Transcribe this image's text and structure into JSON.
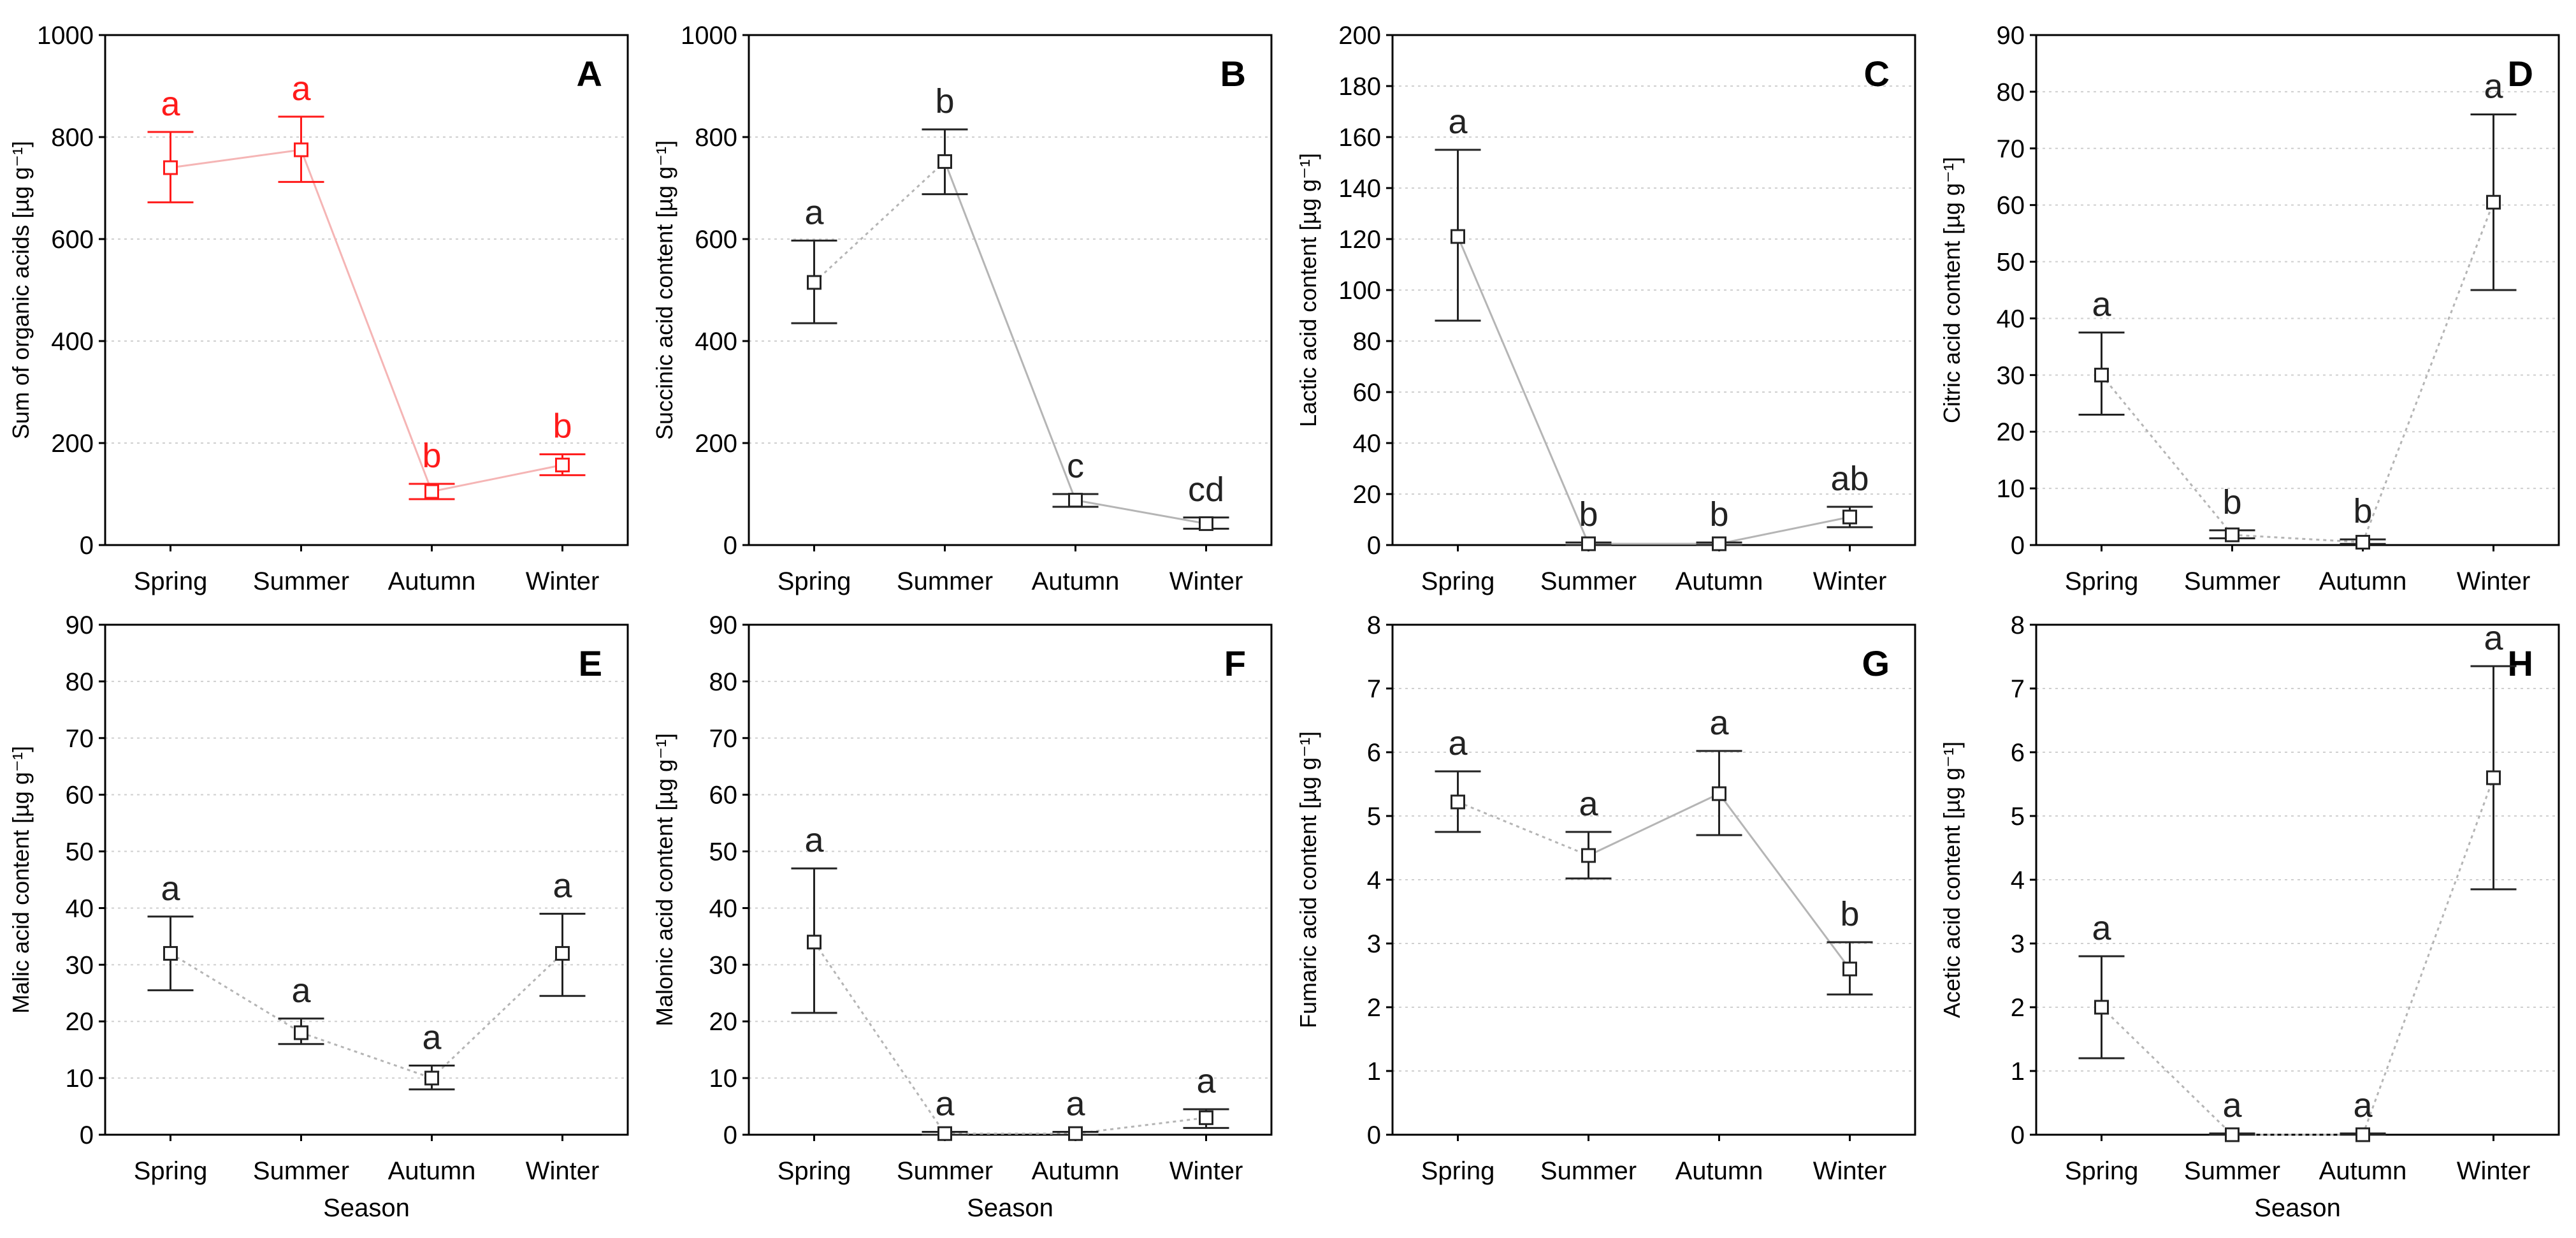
{
  "chart_data": [
    {
      "panel": "A",
      "type": "line",
      "categories": [
        "Spring",
        "Summer",
        "Autumn",
        "Winter"
      ],
      "ylabel": "Sum of organic acids [µg g⁻¹]",
      "xlabel": "",
      "ylim": [
        0,
        1000
      ],
      "yticks": [
        0,
        200,
        400,
        600,
        800,
        1000
      ],
      "means": [
        740,
        775,
        105,
        157
      ],
      "err_low": [
        672,
        712,
        90,
        137
      ],
      "err_high": [
        810,
        840,
        120,
        178
      ],
      "group_labels": [
        "a",
        "a",
        "b",
        "b"
      ],
      "line_style": "solid",
      "color": "#ff1a1a",
      "line_color": "#f5b5b5"
    },
    {
      "panel": "B",
      "type": "line",
      "categories": [
        "Spring",
        "Summer",
        "Autumn",
        "Winter"
      ],
      "ylabel": "Succinic acid content [µg g⁻¹]",
      "xlabel": "",
      "ylim": [
        0,
        1000
      ],
      "yticks": [
        0,
        200,
        400,
        600,
        800,
        1000
      ],
      "means": [
        515,
        752,
        88,
        42
      ],
      "err_low": [
        435,
        688,
        75,
        32
      ],
      "err_high": [
        597,
        815,
        100,
        54
      ],
      "group_labels": [
        "a",
        "b",
        "c",
        "cd"
      ],
      "line_style": "mixed",
      "color": "#222222",
      "line_color": "#b5b5b5"
    },
    {
      "panel": "C",
      "type": "line",
      "categories": [
        "Spring",
        "Summer",
        "Autumn",
        "Winter"
      ],
      "ylabel": "Lactic acid content [µg g⁻¹]",
      "xlabel": "",
      "ylim": [
        0,
        200
      ],
      "yticks": [
        0,
        20,
        40,
        60,
        80,
        100,
        120,
        140,
        160,
        180,
        200
      ],
      "means": [
        121,
        0.5,
        0.5,
        11
      ],
      "err_low": [
        88,
        0,
        0,
        7
      ],
      "err_high": [
        155,
        1,
        1,
        15
      ],
      "group_labels": [
        "a",
        "b",
        "b",
        "ab"
      ],
      "line_style": "solid",
      "color": "#222222",
      "line_color": "#b5b5b5"
    },
    {
      "panel": "D",
      "type": "line",
      "categories": [
        "Spring",
        "Summer",
        "Autumn",
        "Winter"
      ],
      "ylabel": "Citric acid content [µg g⁻¹]",
      "xlabel": "",
      "ylim": [
        0,
        90
      ],
      "yticks": [
        0,
        10,
        20,
        30,
        40,
        50,
        60,
        70,
        80,
        90
      ],
      "means": [
        30,
        1.8,
        0.5,
        60.5
      ],
      "err_low": [
        23,
        1.2,
        0.2,
        45
      ],
      "err_high": [
        37.5,
        2.6,
        1,
        76
      ],
      "group_labels": [
        "a",
        "b",
        "b",
        "a"
      ],
      "line_style": "dotted",
      "color": "#222222",
      "line_color": "#b5b5b5"
    },
    {
      "panel": "E",
      "type": "line",
      "categories": [
        "Spring",
        "Summer",
        "Autumn",
        "Winter"
      ],
      "ylabel": "Malic acid content [µg g⁻¹]",
      "xlabel": "Season",
      "ylim": [
        0,
        90
      ],
      "yticks": [
        0,
        10,
        20,
        30,
        40,
        50,
        60,
        70,
        80,
        90
      ],
      "means": [
        32,
        18,
        10,
        32
      ],
      "err_low": [
        25.5,
        16,
        8,
        24.5
      ],
      "err_high": [
        38.5,
        20.5,
        12.2,
        39
      ],
      "group_labels": [
        "a",
        "a",
        "a",
        "a"
      ],
      "line_style": "dotted",
      "color": "#222222",
      "line_color": "#b5b5b5"
    },
    {
      "panel": "F",
      "type": "line",
      "categories": [
        "Spring",
        "Summer",
        "Autumn",
        "Winter"
      ],
      "ylabel": "Malonic acid content [µg g⁻¹]",
      "xlabel": "Season",
      "ylim": [
        0,
        90
      ],
      "yticks": [
        0,
        10,
        20,
        30,
        40,
        50,
        60,
        70,
        80,
        90
      ],
      "means": [
        34,
        0.2,
        0.2,
        3
      ],
      "err_low": [
        21.5,
        0,
        0,
        1.2
      ],
      "err_high": [
        47,
        0.5,
        0.5,
        4.5
      ],
      "group_labels": [
        "a",
        "a",
        "a",
        "a"
      ],
      "line_style": "dotted",
      "color": "#222222",
      "line_color": "#b5b5b5"
    },
    {
      "panel": "G",
      "type": "line",
      "categories": [
        "Spring",
        "Summer",
        "Autumn",
        "Winter"
      ],
      "ylabel": "Fumaric acid content [µg g⁻¹]",
      "xlabel": "",
      "ylim": [
        0,
        8
      ],
      "yticks": [
        0,
        1,
        2,
        3,
        4,
        5,
        6,
        7,
        8
      ],
      "means": [
        5.22,
        4.38,
        5.35,
        2.6
      ],
      "err_low": [
        4.75,
        4.02,
        4.7,
        2.2
      ],
      "err_high": [
        5.7,
        4.75,
        6.02,
        3.02
      ],
      "group_labels": [
        "a",
        "a",
        "a",
        "b"
      ],
      "line_style": "mixed",
      "color": "#222222",
      "line_color": "#b5b5b5"
    },
    {
      "panel": "H",
      "type": "line",
      "categories": [
        "Spring",
        "Summer",
        "Autumn",
        "Winter"
      ],
      "ylabel": "Acetic acid content [µg g⁻¹]",
      "xlabel": "Season",
      "ylim": [
        0,
        8
      ],
      "yticks": [
        0,
        1,
        2,
        3,
        4,
        5,
        6,
        7,
        8
      ],
      "means": [
        2,
        0,
        0,
        5.6
      ],
      "err_low": [
        1.2,
        0,
        0,
        3.85
      ],
      "err_high": [
        2.8,
        0.02,
        0.02,
        7.35
      ],
      "group_labels": [
        "a",
        "a",
        "a",
        "a"
      ],
      "line_style": "dotted",
      "color": "#222222",
      "line_color": "#b5b5b5"
    }
  ]
}
